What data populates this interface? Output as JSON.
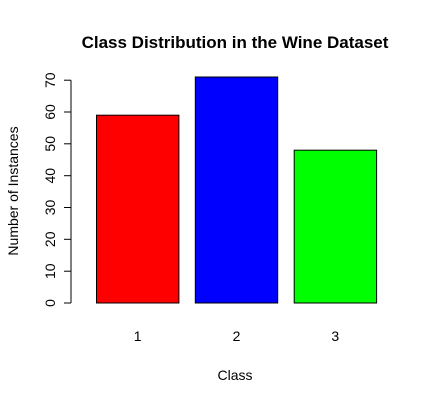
{
  "chart_data": {
    "type": "bar",
    "title": "Class Distribution in the Wine Dataset",
    "xlabel": "Class",
    "ylabel": "Number of Instances",
    "categories": [
      "1",
      "2",
      "3"
    ],
    "values": [
      59,
      71,
      48
    ],
    "colors": [
      "#ff0000",
      "#0000ff",
      "#00ff00"
    ],
    "ylim": [
      0,
      71
    ],
    "yticks": [
      0,
      10,
      20,
      30,
      40,
      50,
      60,
      70
    ],
    "grid": false,
    "legend": "none"
  }
}
